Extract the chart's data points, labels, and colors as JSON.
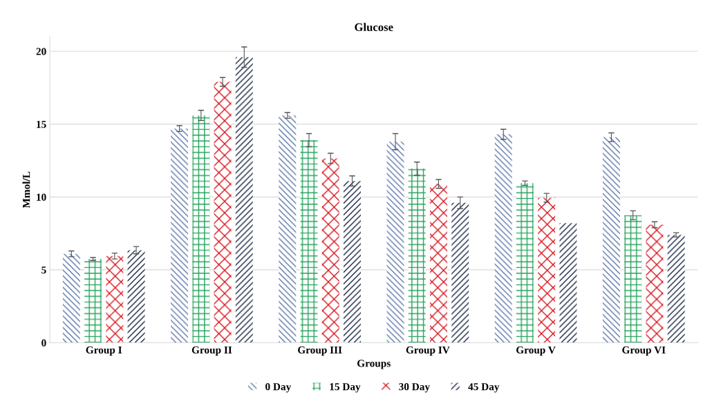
{
  "chart_data": {
    "type": "bar",
    "title": "Glucose",
    "xlabel": "Groups",
    "ylabel": "Mmol/L",
    "categories": [
      "Group I",
      "Group II",
      "Group III",
      "Group IV",
      "Group V",
      "Group VI"
    ],
    "series": [
      {
        "name": "0 Day",
        "color": "#5b76a8",
        "values": [
          6.1,
          14.7,
          15.6,
          13.8,
          14.3,
          14.1
        ],
        "errors": [
          0.2,
          0.2,
          0.2,
          0.55,
          0.35,
          0.3
        ]
      },
      {
        "name": "15 Day",
        "color": "#21a35a",
        "values": [
          5.75,
          15.6,
          13.9,
          11.95,
          10.95,
          8.75
        ],
        "errors": [
          0.1,
          0.35,
          0.45,
          0.45,
          0.15,
          0.3
        ]
      },
      {
        "name": "30 Day",
        "color": "#d8121b",
        "values": [
          5.95,
          17.9,
          12.65,
          10.9,
          9.95,
          8.1
        ],
        "errors": [
          0.2,
          0.3,
          0.35,
          0.3,
          0.3,
          0.2
        ]
      },
      {
        "name": "45 Day",
        "color": "#14213d",
        "values": [
          6.35,
          19.6,
          11.1,
          9.6,
          8.2,
          7.4
        ],
        "errors": [
          0.25,
          0.7,
          0.35,
          0.4,
          null,
          0.15
        ]
      }
    ],
    "ylim": [
      0,
      21
    ],
    "yticks": [
      0,
      5,
      10,
      15,
      20
    ],
    "grid": "y",
    "legend": "bottom"
  }
}
